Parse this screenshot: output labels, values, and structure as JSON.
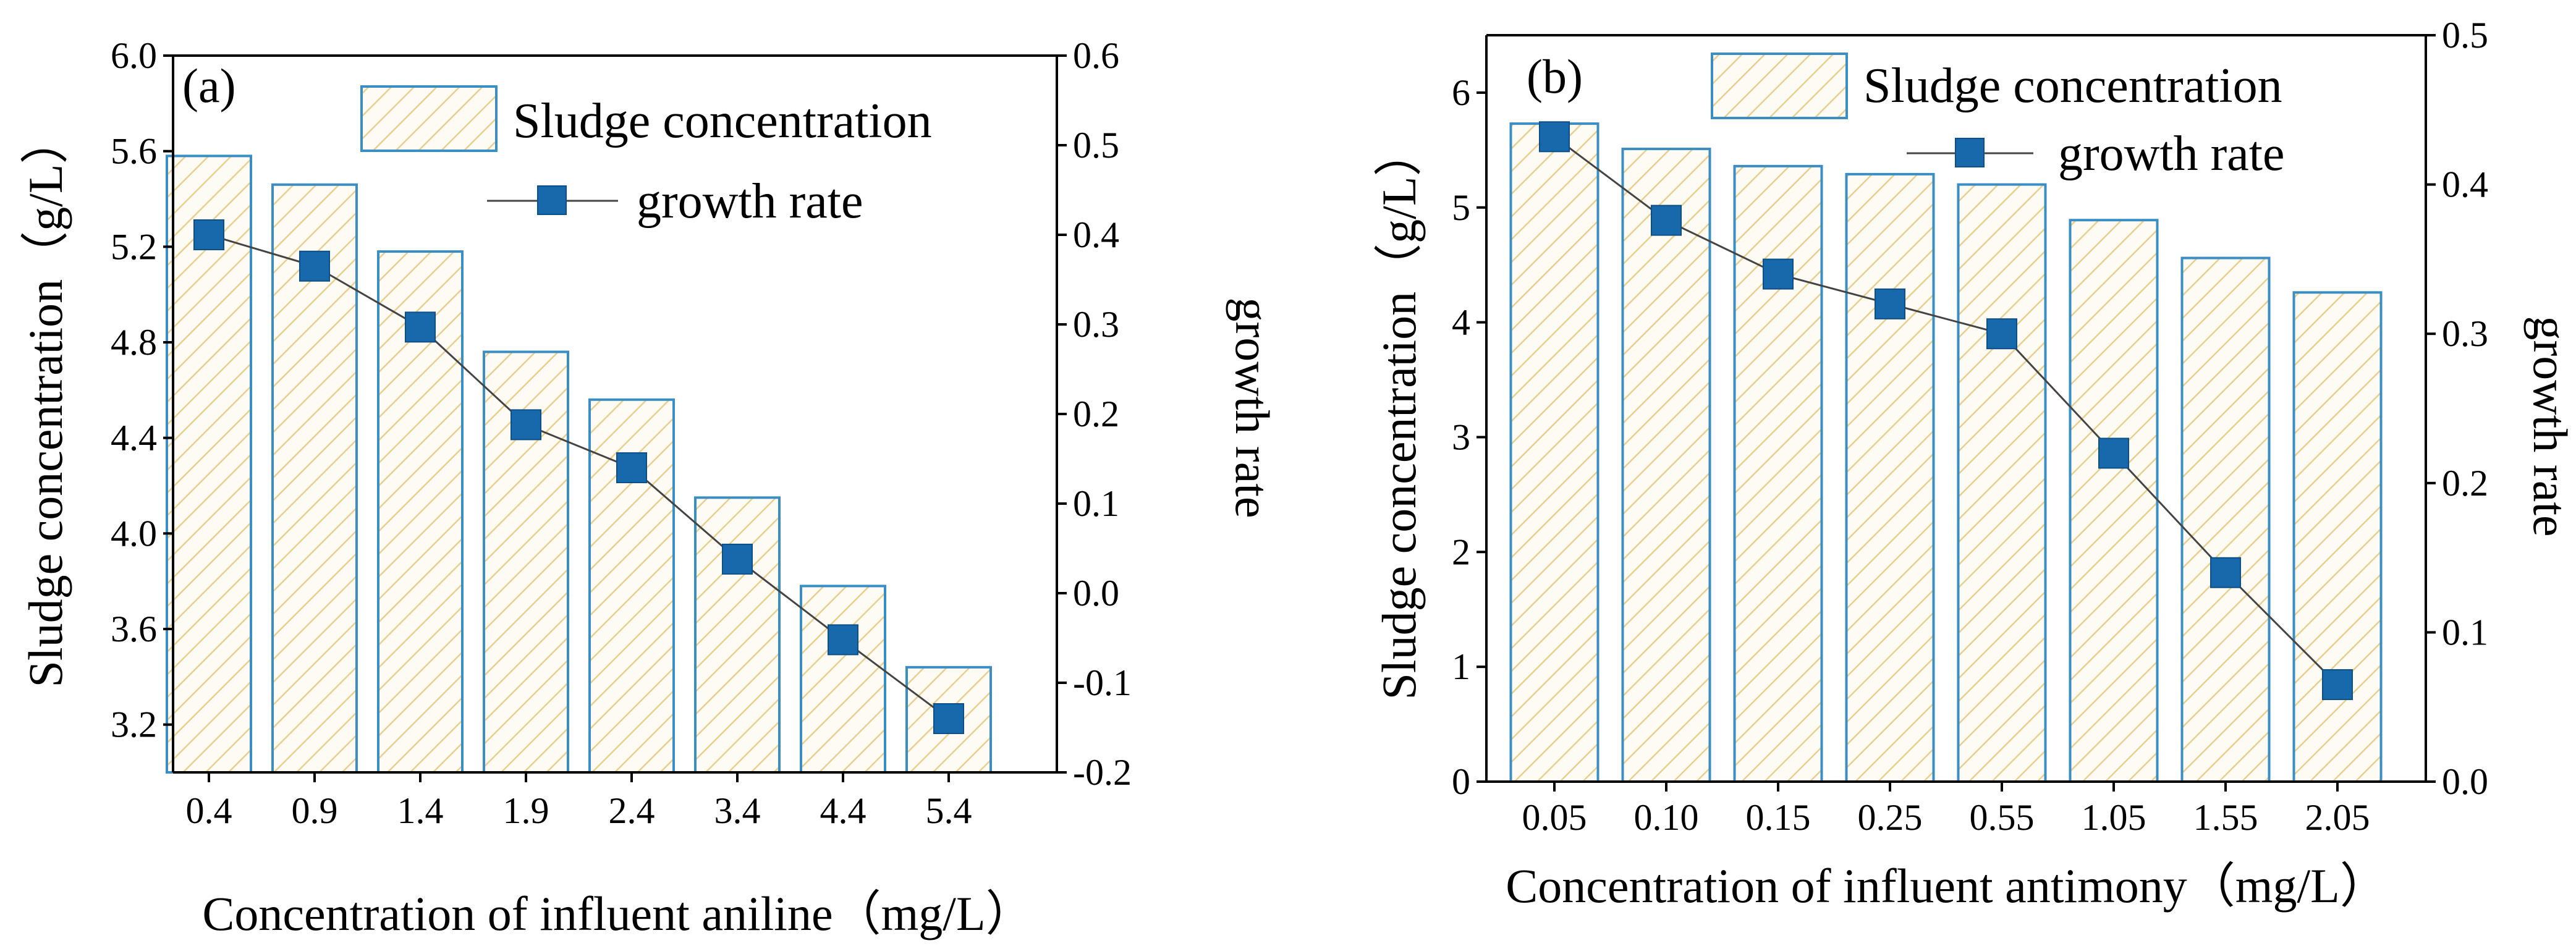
{
  "chart_data": [
    {
      "type": "bar",
      "panel_label": "(a)",
      "categories": [
        "0.4",
        "0.9",
        "1.4",
        "1.9",
        "2.4",
        "3.4",
        "4.4",
        "5.4"
      ],
      "series": [
        {
          "name": "Sludge concentration",
          "kind": "bar",
          "axis": "left",
          "values": [
            5.58,
            5.46,
            5.18,
            4.76,
            4.56,
            4.15,
            3.78,
            3.44
          ]
        },
        {
          "name": "growth rate",
          "kind": "line",
          "axis": "right",
          "values": [
            0.4,
            0.365,
            0.297,
            0.188,
            0.14,
            0.038,
            -0.052,
            -0.14
          ]
        }
      ],
      "xlabel": "Concentration of influent aniline（mg/L）",
      "ylabel": "Sludge concentration（g/L）",
      "y2label": "growth rate",
      "ylim": [
        3.0,
        6.0
      ],
      "yticks": [
        "3.2",
        "3.6",
        "4.0",
        "4.4",
        "4.8",
        "5.2",
        "5.6",
        "6.0"
      ],
      "y2lim": [
        -0.2,
        0.6
      ],
      "y2ticks": [
        "-0.2",
        "-0.1",
        "0.0",
        "0.1",
        "0.2",
        "0.3",
        "0.4",
        "0.5",
        "0.6"
      ],
      "legend_position": "top-right",
      "colors": {
        "bar_stroke": "#3b8ec3",
        "bar_hatch": "#e8cf8f",
        "marker": "#1769ac",
        "line": "#444444"
      }
    },
    {
      "type": "bar",
      "panel_label": "(b)",
      "categories": [
        "0.05",
        "0.10",
        "0.15",
        "0.25",
        "0.55",
        "1.05",
        "1.55",
        "2.05"
      ],
      "series": [
        {
          "name": "Sludge concentration",
          "kind": "bar",
          "axis": "left",
          "values": [
            5.73,
            5.51,
            5.36,
            5.29,
            5.2,
            4.89,
            4.56,
            4.26
          ]
        },
        {
          "name": "growth rate",
          "kind": "line",
          "axis": "right",
          "values": [
            0.432,
            0.376,
            0.34,
            0.32,
            0.3,
            0.22,
            0.14,
            0.065
          ]
        }
      ],
      "xlabel": "Concentration of influent antimony（mg/L）",
      "ylabel": "Sludge concentration（g/L）",
      "y2label": "growth rate",
      "ylim": [
        0,
        6.5
      ],
      "yticks": [
        "0",
        "1",
        "2",
        "3",
        "4",
        "5",
        "6"
      ],
      "y2lim": [
        0.0,
        0.5
      ],
      "y2ticks": [
        "0.0",
        "0.1",
        "0.2",
        "0.3",
        "0.4",
        "0.5"
      ],
      "legend_position": "top-right",
      "colors": {
        "bar_stroke": "#3b8ec3",
        "bar_hatch": "#e8cf8f",
        "marker": "#1769ac",
        "line": "#444444"
      }
    }
  ]
}
